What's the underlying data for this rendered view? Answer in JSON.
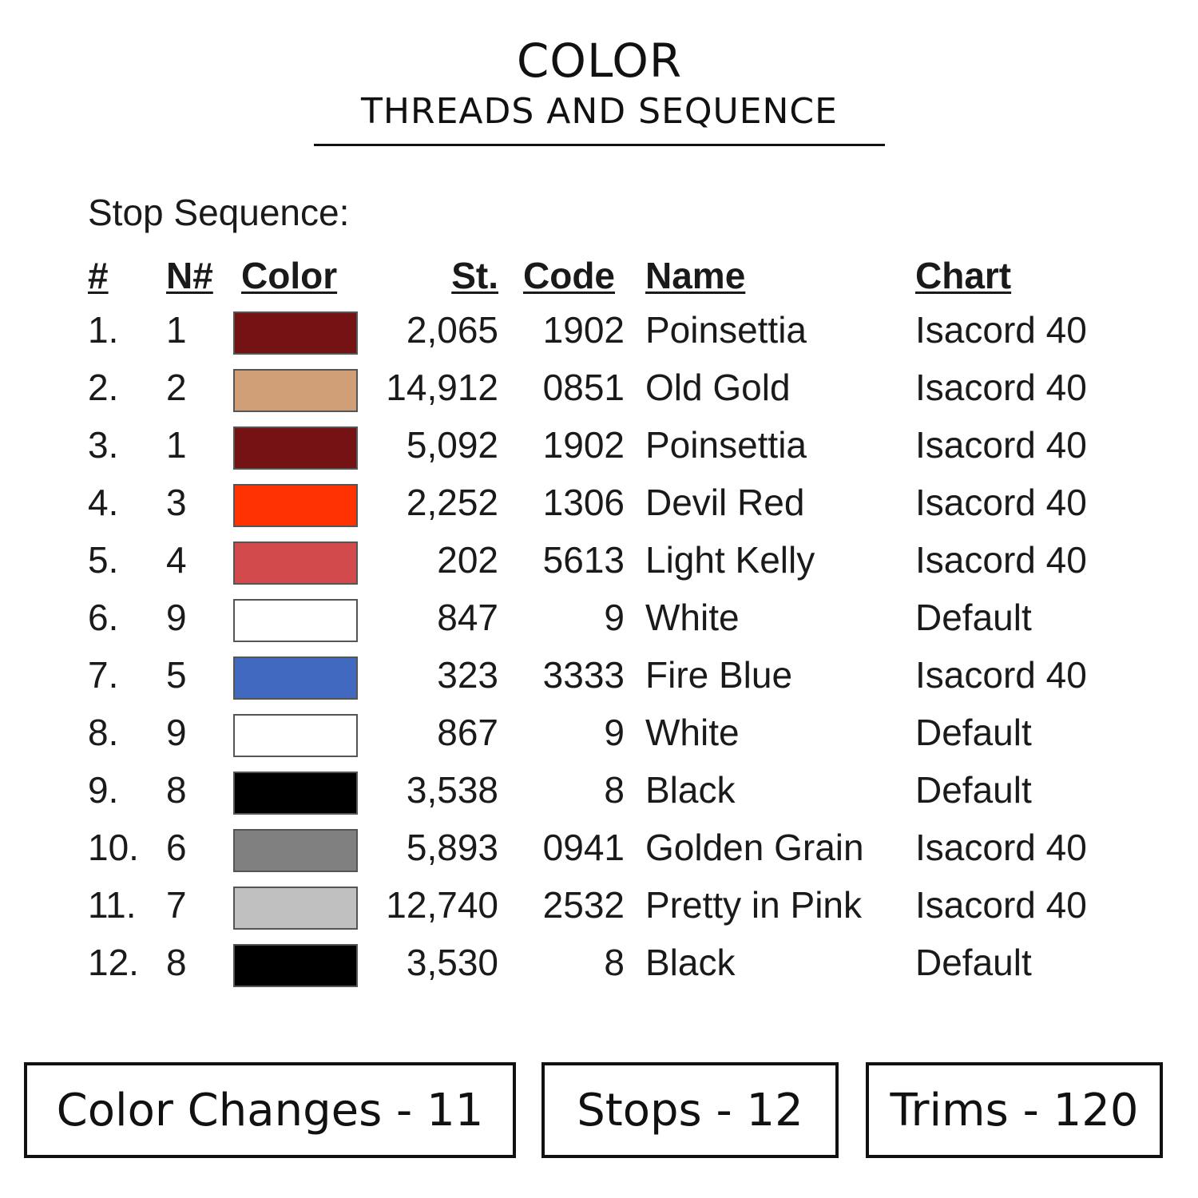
{
  "header": {
    "title": "COLOR",
    "subtitle": "THREADS AND SEQUENCE"
  },
  "section_label": "Stop Sequence:",
  "columns": {
    "num": "#",
    "n": "N#",
    "color": "Color",
    "st": "St.",
    "code": "Code",
    "name": "Name",
    "chart": "Chart"
  },
  "rows": [
    {
      "num": "1.",
      "n": "1",
      "color": "#751214",
      "st": "2,065",
      "code": "1902",
      "name": "Poinsettia",
      "chart": "Isacord 40"
    },
    {
      "num": "2.",
      "n": "2",
      "color": "#D19F77",
      "st": "14,912",
      "code": "0851",
      "name": "Old Gold",
      "chart": "Isacord 40"
    },
    {
      "num": "3.",
      "n": "1",
      "color": "#751214",
      "st": "5,092",
      "code": "1902",
      "name": "Poinsettia",
      "chart": "Isacord 40"
    },
    {
      "num": "4.",
      "n": "3",
      "color": "#FF3100",
      "st": "2,252",
      "code": "1306",
      "name": "Devil Red",
      "chart": "Isacord 40"
    },
    {
      "num": "5.",
      "n": "4",
      "color": "#D24A4B",
      "st": "202",
      "code": "5613",
      "name": "Light Kelly",
      "chart": "Isacord 40"
    },
    {
      "num": "6.",
      "n": "9",
      "color": "#FFFFFF",
      "st": "847",
      "code": "9",
      "name": "White",
      "chart": "Default"
    },
    {
      "num": "7.",
      "n": "5",
      "color": "#4169C0",
      "st": "323",
      "code": "3333",
      "name": "Fire Blue",
      "chart": "Isacord 40"
    },
    {
      "num": "8.",
      "n": "9",
      "color": "#FFFFFF",
      "st": "867",
      "code": "9",
      "name": "White",
      "chart": "Default"
    },
    {
      "num": "9.",
      "n": "8",
      "color": "#000000",
      "st": "3,538",
      "code": "8",
      "name": "Black",
      "chart": "Default"
    },
    {
      "num": "10.",
      "n": "6",
      "color": "#808080",
      "st": "5,893",
      "code": "0941",
      "name": "Golden Grain",
      "chart": "Isacord 40"
    },
    {
      "num": "11.",
      "n": "7",
      "color": "#C0C0C0",
      "st": "12,740",
      "code": "2532",
      "name": "Pretty in Pink",
      "chart": "Isacord 40"
    },
    {
      "num": "12.",
      "n": "8",
      "color": "#000000",
      "st": "3,530",
      "code": "8",
      "name": "Black",
      "chart": "Default"
    }
  ],
  "summary": {
    "color_changes": "Color Changes - 11",
    "stops": "Stops - 12",
    "trims": "Trims - 120"
  }
}
